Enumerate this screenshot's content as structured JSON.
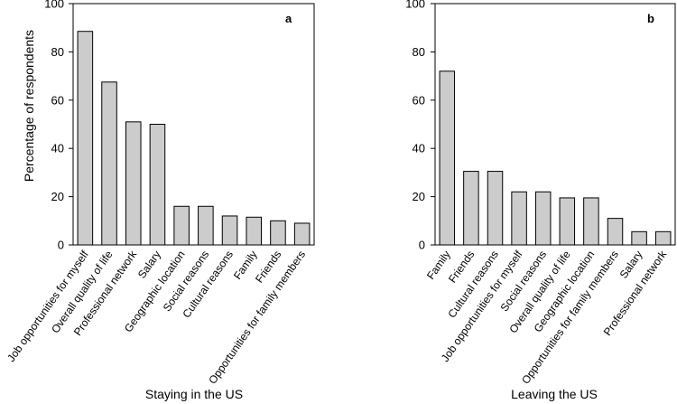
{
  "chart_data": [
    {
      "type": "bar",
      "panel_label": "a",
      "categories": [
        "Job opportunities for myself",
        "Overall quality of life",
        "Professional network",
        "Salary",
        "Geographic location",
        "Social reasons",
        "Cultural reasons",
        "Family",
        "Friends",
        "Opportunities for family members"
      ],
      "values": [
        88.5,
        67.5,
        51,
        50,
        16,
        16,
        12,
        11.5,
        10,
        9
      ],
      "xlabel": "Staying in the US",
      "ylabel": "Percentage of respondents",
      "ylim": [
        0,
        100
      ],
      "yticks": [
        "0",
        "20",
        "40",
        "60",
        "80",
        "100"
      ],
      "bar_color": "#cccccc"
    },
    {
      "type": "bar",
      "panel_label": "b",
      "categories": [
        "Family",
        "Friends",
        "Cultural reasons",
        "Job opportunities for myself",
        "Social reasons",
        "Overall quality of life",
        "Geographic location",
        "Opportunities for family members",
        "Salary",
        "Professional network"
      ],
      "values": [
        72,
        30.5,
        30.5,
        22,
        22,
        19.5,
        19.5,
        11,
        5.5,
        5.5
      ],
      "xlabel": "Leaving the US",
      "ylabel": "",
      "ylim": [
        0,
        100
      ],
      "yticks": [
        "0",
        "20",
        "40",
        "60",
        "80",
        "100"
      ],
      "bar_color": "#cccccc"
    }
  ]
}
